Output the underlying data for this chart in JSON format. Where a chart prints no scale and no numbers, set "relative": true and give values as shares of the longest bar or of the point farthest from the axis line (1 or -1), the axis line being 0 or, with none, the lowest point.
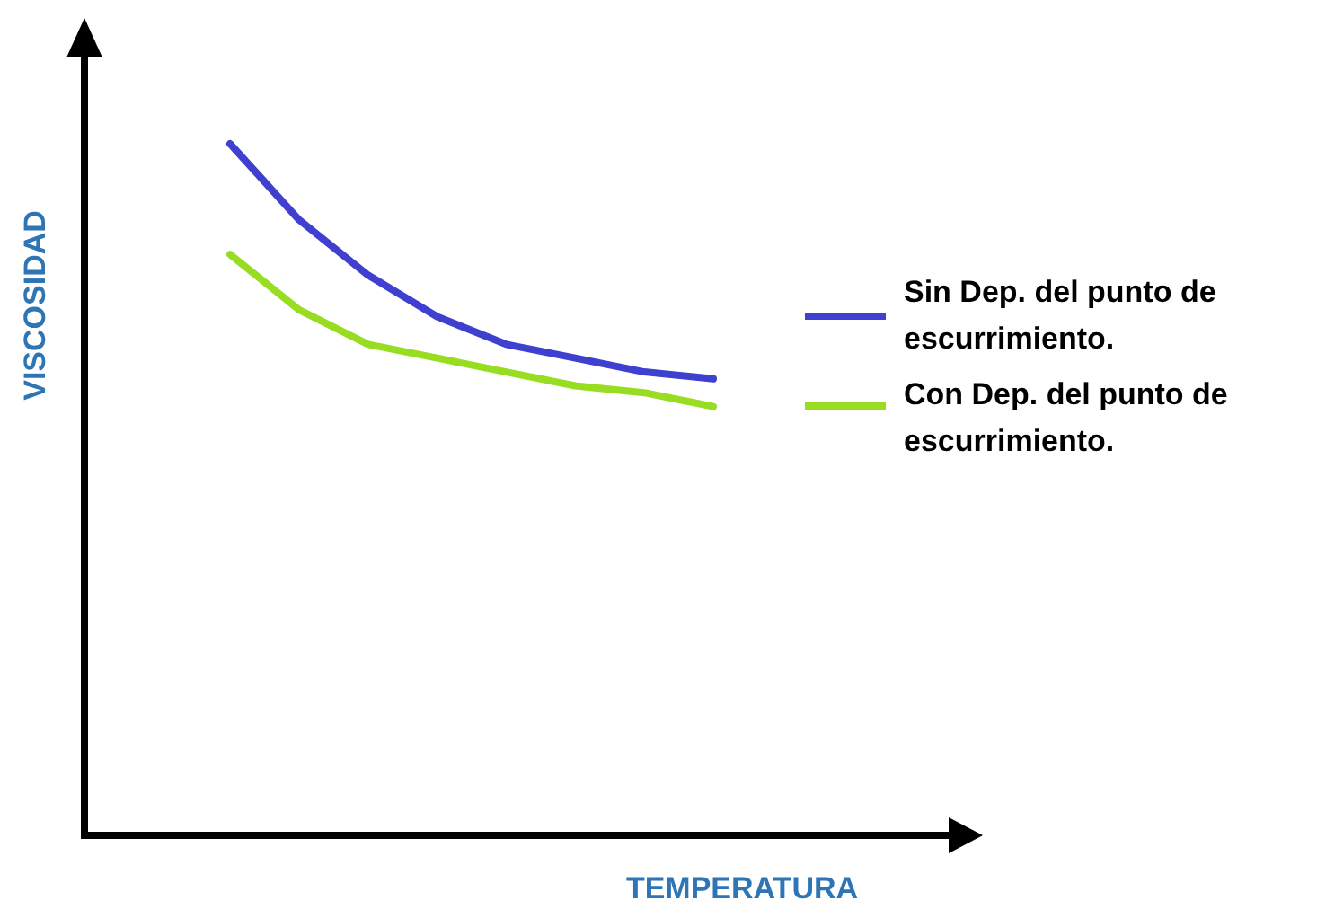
{
  "chart_data": {
    "type": "line",
    "relative": true,
    "xlabel": "TEMPERATURA",
    "ylabel": "VISCOSIDAD",
    "legend": "right",
    "marker": "none",
    "line_style": "solid",
    "categories": [
      null,
      null,
      null,
      null,
      null,
      null,
      null,
      null
    ],
    "series": [
      {
        "name": "Sin Dep. del punto de escurrimiento.",
        "color": "#3f3fd0",
        "values": [
          1,
          0.89,
          0.81,
          0.75,
          0.71,
          0.69,
          0.67,
          0.66
        ]
      },
      {
        "name": "Con Dep. del punto de escurrimiento.",
        "color": "#99dd22",
        "values": [
          0.84,
          0.76,
          0.71,
          0.69,
          0.67,
          0.65,
          0.64,
          0.62
        ]
      }
    ]
  }
}
